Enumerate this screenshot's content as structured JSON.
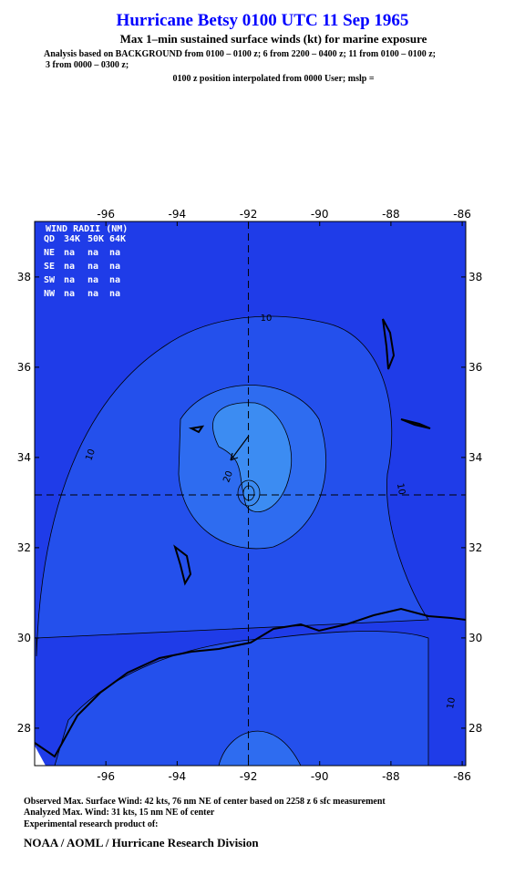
{
  "header": {
    "title": "Hurricane Betsy 0100 UTC 11 Sep 1965",
    "subtitle": "Max 1–min sustained surface winds (kt) for marine exposure",
    "analysis_line1": "Analysis based on  BACKGROUND from 0100 – 0100 z;  6 from 2200 – 0400 z;  11 from 0100 – 0100 z;",
    "analysis_line2": "3 from 0000 – 0300 z;",
    "position_line": "0100 z position interpolated from 0000 User; mslp ="
  },
  "map": {
    "lonlim": [
      -98.0,
      -85.9
    ],
    "latlim": [
      27.17,
      39.23
    ],
    "lonticks": [
      -96,
      -94,
      -92,
      -90,
      -88,
      -86
    ],
    "latticks": [
      28,
      30,
      32,
      34,
      36,
      38
    ],
    "center": {
      "lon": -92,
      "lat": 33.17
    },
    "contour_labels": [
      10,
      10,
      10,
      10,
      20
    ],
    "wind_radii": {
      "title": "WIND RADII (NM)",
      "header": [
        "QD",
        "34K",
        "50K",
        "64K"
      ],
      "rows": [
        [
          "NE",
          "na",
          "na",
          "na"
        ],
        [
          "SE",
          "na",
          "na",
          "na"
        ],
        [
          "SW",
          "na",
          "na",
          "na"
        ],
        [
          "NW",
          "na",
          "na",
          "na"
        ]
      ]
    }
  },
  "footer": {
    "observed": "Observed Max. Surface Wind: 42 kts, 76 nm NE of center based on 2258 z 6 sfc measurement",
    "analyzed": "Analyzed Max. Wind: 31 kts, 15 nm NE of center",
    "product": "Experimental research product of:",
    "org": "NOAA / AOML / Hurricane Research Division"
  }
}
